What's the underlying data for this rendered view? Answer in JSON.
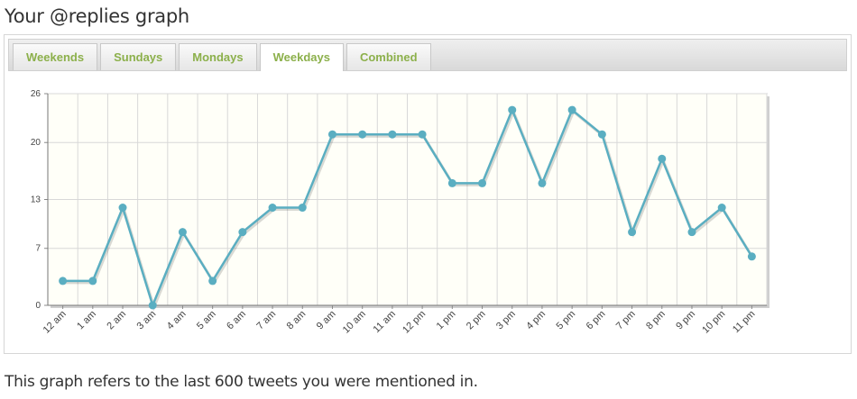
{
  "page": {
    "title": "Your @replies graph",
    "footer": "This graph refers to the last 600 tweets you were mentioned in."
  },
  "tabs": [
    {
      "label": "Weekends",
      "active": false
    },
    {
      "label": "Sundays",
      "active": false
    },
    {
      "label": "Mondays",
      "active": false
    },
    {
      "label": "Weekdays",
      "active": true
    },
    {
      "label": "Combined",
      "active": false
    }
  ],
  "colors": {
    "line": "#5aaec1",
    "plot_background": "#fffff8",
    "grid": "#d8d8d8",
    "tab_text": "#8cb04b"
  },
  "chart_data": {
    "type": "line",
    "categories": [
      "12 am",
      "1 am",
      "2 am",
      "3 am",
      "4 am",
      "5 am",
      "6 am",
      "7 am",
      "8 am",
      "9 am",
      "10 am",
      "11 am",
      "12 pm",
      "1 pm",
      "2 pm",
      "3 pm",
      "4 pm",
      "5 pm",
      "6 pm",
      "7 pm",
      "8 pm",
      "9 pm",
      "10 pm",
      "11 pm"
    ],
    "values": [
      3,
      3,
      12,
      0,
      9,
      3,
      9,
      12,
      12,
      21,
      21,
      21,
      21,
      15,
      15,
      24,
      15,
      24,
      21,
      9,
      18,
      9,
      12,
      6
    ],
    "ylim": [
      0,
      26
    ],
    "yticks": [
      "0",
      "7",
      "13",
      "20",
      "26"
    ],
    "grid": true,
    "legend": "none"
  }
}
